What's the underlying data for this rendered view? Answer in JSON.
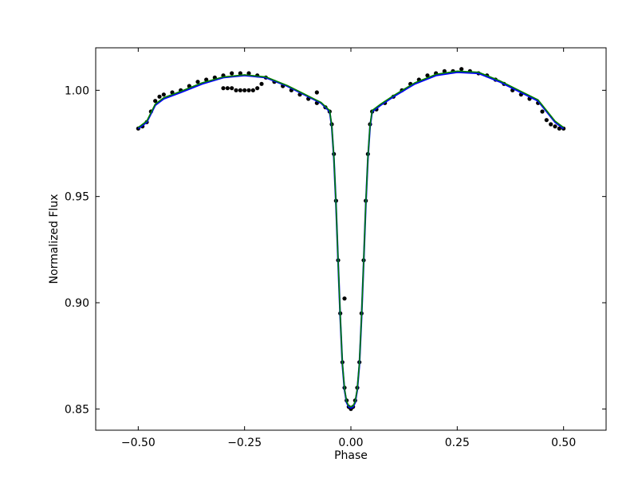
{
  "chart_data": {
    "type": "scatter",
    "title": "",
    "xlabel": "Phase",
    "ylabel": "Normalized Flux",
    "xlim": [
      -0.6,
      0.6
    ],
    "ylim": [
      0.84,
      1.02
    ],
    "xticks": [
      -0.5,
      -0.25,
      0.0,
      0.25,
      0.5
    ],
    "xtick_labels": [
      "−0.50",
      "−0.25",
      "0.00",
      "0.25",
      "0.50"
    ],
    "yticks": [
      0.85,
      0.9,
      0.95,
      1.0
    ],
    "ytick_labels": [
      "0.85",
      "0.90",
      "0.95",
      "1.00"
    ],
    "grid": false,
    "colors": {
      "data": "#000000",
      "model_blue": "#0000ff",
      "model_green": "#008000"
    },
    "series": [
      {
        "kind": "points",
        "x": [
          -0.5,
          -0.49,
          -0.48,
          -0.47,
          -0.46,
          -0.45,
          -0.44,
          -0.42,
          -0.4,
          -0.38,
          -0.36,
          -0.34,
          -0.32,
          -0.3,
          -0.28,
          -0.26,
          -0.24,
          -0.22,
          -0.2,
          -0.18,
          -0.16,
          -0.14,
          -0.12,
          -0.1,
          -0.08,
          -0.06,
          -0.05,
          -0.045,
          -0.04,
          -0.035,
          -0.03,
          -0.025,
          -0.02,
          -0.015,
          -0.01,
          -0.005,
          0.0,
          0.005,
          0.01,
          0.015,
          0.02,
          0.025,
          0.03,
          0.035,
          0.04,
          0.045,
          0.05,
          0.06,
          0.08,
          0.1,
          0.12,
          0.14,
          0.16,
          0.18,
          0.2,
          0.22,
          0.24,
          0.26,
          0.28,
          0.3,
          0.32,
          0.34,
          0.36,
          0.38,
          0.4,
          0.42,
          0.44,
          0.45,
          0.46,
          0.47,
          0.48,
          0.49,
          0.5
        ],
        "y": [
          0.982,
          0.983,
          0.985,
          0.99,
          0.995,
          0.997,
          0.998,
          0.999,
          1.0,
          1.002,
          1.004,
          1.005,
          1.006,
          1.007,
          1.008,
          1.008,
          1.008,
          1.007,
          1.006,
          1.004,
          1.002,
          1.0,
          0.998,
          0.996,
          0.994,
          0.992,
          0.99,
          0.984,
          0.97,
          0.948,
          0.92,
          0.895,
          0.872,
          0.86,
          0.854,
          0.851,
          0.85,
          0.851,
          0.854,
          0.86,
          0.872,
          0.895,
          0.92,
          0.948,
          0.97,
          0.984,
          0.99,
          0.991,
          0.994,
          0.997,
          1.0,
          1.003,
          1.005,
          1.007,
          1.008,
          1.009,
          1.009,
          1.01,
          1.009,
          1.008,
          1.007,
          1.005,
          1.003,
          1.0,
          0.998,
          0.996,
          0.994,
          0.99,
          0.986,
          0.984,
          0.983,
          0.982,
          0.982
        ]
      },
      {
        "kind": "points",
        "x": [
          -0.3,
          -0.29,
          -0.28,
          -0.27,
          -0.26,
          -0.25,
          -0.24,
          -0.23,
          -0.22,
          -0.21,
          -0.08,
          -0.015
        ],
        "y": [
          1.001,
          1.001,
          1.001,
          1.0,
          1.0,
          1.0,
          1.0,
          1.0,
          1.001,
          1.003,
          0.999,
          0.902
        ]
      },
      {
        "kind": "line",
        "color": "blue",
        "x": [
          -0.5,
          -0.48,
          -0.46,
          -0.44,
          -0.4,
          -0.35,
          -0.3,
          -0.25,
          -0.2,
          -0.15,
          -0.1,
          -0.07,
          -0.05,
          -0.045,
          -0.04,
          -0.035,
          -0.03,
          -0.025,
          -0.02,
          -0.015,
          -0.01,
          -0.005,
          0.0,
          0.005,
          0.01,
          0.015,
          0.02,
          0.025,
          0.03,
          0.035,
          0.04,
          0.045,
          0.05,
          0.07,
          0.1,
          0.15,
          0.2,
          0.25,
          0.3,
          0.35,
          0.4,
          0.44,
          0.46,
          0.48,
          0.5
        ],
        "y": [
          0.982,
          0.985,
          0.993,
          0.996,
          0.999,
          1.003,
          1.006,
          1.007,
          1.006,
          1.002,
          0.997,
          0.994,
          0.99,
          0.983,
          0.968,
          0.946,
          0.919,
          0.893,
          0.871,
          0.859,
          0.853,
          0.851,
          0.8505,
          0.851,
          0.853,
          0.859,
          0.871,
          0.893,
          0.919,
          0.946,
          0.968,
          0.983,
          0.99,
          0.993,
          0.997,
          1.003,
          1.007,
          1.0085,
          1.008,
          1.004,
          0.999,
          0.995,
          0.99,
          0.985,
          0.982
        ]
      },
      {
        "kind": "line",
        "color": "green",
        "x": [
          -0.5,
          -0.48,
          -0.46,
          -0.44,
          -0.4,
          -0.35,
          -0.3,
          -0.25,
          -0.2,
          -0.15,
          -0.1,
          -0.07,
          -0.05,
          -0.045,
          -0.04,
          -0.035,
          -0.03,
          -0.025,
          -0.02,
          -0.015,
          -0.01,
          -0.005,
          0.0,
          0.005,
          0.01,
          0.015,
          0.02,
          0.025,
          0.03,
          0.035,
          0.04,
          0.045,
          0.05,
          0.07,
          0.1,
          0.15,
          0.2,
          0.25,
          0.3,
          0.35,
          0.4,
          0.44,
          0.46,
          0.48,
          0.5
        ],
        "y": [
          0.9825,
          0.9855,
          0.9935,
          0.9965,
          0.9995,
          1.0035,
          1.0063,
          1.0073,
          1.0063,
          1.0023,
          0.9973,
          0.9943,
          0.9905,
          0.9835,
          0.9685,
          0.9465,
          0.9195,
          0.8935,
          0.8715,
          0.8595,
          0.8535,
          0.8515,
          0.851,
          0.8515,
          0.8535,
          0.8595,
          0.8715,
          0.8935,
          0.9195,
          0.9465,
          0.9685,
          0.9835,
          0.9905,
          0.9935,
          0.9975,
          1.0035,
          1.0075,
          1.009,
          1.0085,
          1.0045,
          0.9995,
          0.9955,
          0.9905,
          0.9855,
          0.9825
        ]
      }
    ]
  }
}
